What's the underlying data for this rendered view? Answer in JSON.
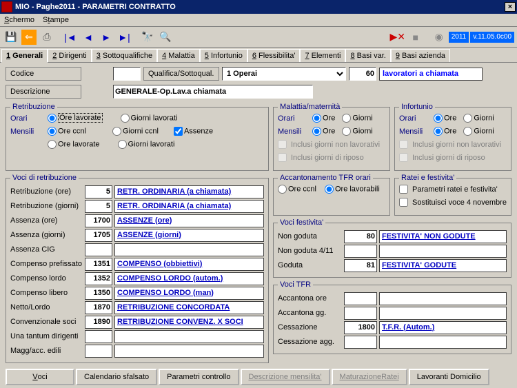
{
  "title": "MIO - Paghe2011 - PARAMETRI CONTRATTO",
  "menu": {
    "schermo": "Schermo",
    "stampe": "Stampe"
  },
  "version": {
    "year": "2011",
    "ver": "v.11.05.0c00"
  },
  "tabs": [
    {
      "n": "1",
      "label": "Generali"
    },
    {
      "n": "2",
      "label": "Dirigenti"
    },
    {
      "n": "3",
      "label": "Sottoqualifiche"
    },
    {
      "n": "4",
      "label": "Malattia"
    },
    {
      "n": "5",
      "label": "Infortunio"
    },
    {
      "n": "6",
      "label": "Flessibilita'"
    },
    {
      "n": "7",
      "label": "Elementi"
    },
    {
      "n": "8",
      "label": "Basi var."
    },
    {
      "n": "9",
      "label": "Basi azienda"
    }
  ],
  "header": {
    "codice_label": "Codice",
    "qualifica_label": "Qualifica/Sottoqual.",
    "qualifica_value": "1 Operai",
    "num_value": "60",
    "tipo_lav": "lavoratori a chiamata",
    "descrizione_label": "Descrizione",
    "descrizione_value": "GENERALE-Op.Lav.a chiamata"
  },
  "retribuzione": {
    "legend": "Retribuzione",
    "orari": "Orari",
    "mensili": "Mensili",
    "ore_lavorate": "Ore lavorate",
    "giorni_lavorati": "Giorni lavorati",
    "ore_ccnl": "Ore ccnl",
    "giorni_ccnl": "Giorni ccnl",
    "assenze": "Assenze",
    "ore_lavorate2": "Ore lavorate",
    "giorni_lavorati2": "Giorni lavorati"
  },
  "malattia": {
    "legend": "Malattia/maternità",
    "orari": "Orari",
    "mensili": "Mensili",
    "ore": "Ore",
    "giorni": "Giorni",
    "inc1": "Inclusi giorni non lavorativi",
    "inc2": "Inclusi giorni di riposo"
  },
  "infortunio": {
    "legend": "Infortunio",
    "orari": "Orari",
    "mensili": "Mensili",
    "ore": "Ore",
    "giorni": "Giorni",
    "inc1": "Inclusi giorni non lavorativi",
    "inc2": "Inclusi giorni di riposo"
  },
  "voci_legend": "Voci di retribuzione",
  "voci": [
    {
      "cap": "Retribuzione (ore)",
      "num": "5",
      "desc": "RETR. ORDINARIA (a chiamata)"
    },
    {
      "cap": "Retribuzione (giorni)",
      "num": "5",
      "desc": "RETR. ORDINARIA (a chiamata)"
    },
    {
      "cap": "Assenza (ore)",
      "num": "1700",
      "desc": "ASSENZE (ore)"
    },
    {
      "cap": "Assenza (giorni)",
      "num": "1705",
      "desc": "ASSENZE (giorni)"
    },
    {
      "cap": "Assenza CIG",
      "num": "",
      "desc": ""
    },
    {
      "cap": "Compenso prefissato",
      "num": "1351",
      "desc": "COMPENSO (obbiettivi)"
    },
    {
      "cap": "Compenso lordo",
      "num": "1352",
      "desc": "COMPENSO LORDO (autom.)"
    },
    {
      "cap": "Compenso libero",
      "num": "1350",
      "desc": "COMPENSO LORDO (man)"
    },
    {
      "cap": "Netto/Lordo",
      "num": "1870",
      "desc": "RETRIBUZIONE CONCORDATA"
    },
    {
      "cap": "Convenzionale soci",
      "num": "1890",
      "desc": "RETRIBUZIONE CONVENZ. X SOCI"
    },
    {
      "cap": "Una tantum dirigenti",
      "num": "",
      "desc": ""
    },
    {
      "cap": "Magg/acc. edili",
      "num": "",
      "desc": ""
    }
  ],
  "acc_tfr": {
    "legend": "Accantonamento TFR orari",
    "ore_ccnl": "Ore ccnl",
    "ore_lav": "Ore lavorabili"
  },
  "ratei": {
    "legend": "Ratei e festivita'",
    "c1": "Parametri ratei e festivita'",
    "c2": "Sostituisci voce 4 novembre"
  },
  "fest": {
    "legend": "Voci festivita'",
    "rows": [
      {
        "cap": "Non goduta",
        "num": "80",
        "desc": "FESTIVITA' NON GODUTE"
      },
      {
        "cap": "Non goduta 4/11",
        "num": "",
        "desc": ""
      },
      {
        "cap": "Goduta",
        "num": "81",
        "desc": "FESTIVITA' GODUTE"
      }
    ]
  },
  "tfr": {
    "legend": "Voci TFR",
    "rows": [
      {
        "cap": "Accantona ore",
        "num": "",
        "desc": ""
      },
      {
        "cap": "Accantona gg.",
        "num": "",
        "desc": ""
      },
      {
        "cap": "Cessazione",
        "num": "1800",
        "desc": "T.F.R. (Autom.)"
      },
      {
        "cap": "Cessazione agg.",
        "num": "",
        "desc": ""
      }
    ]
  },
  "buttons": {
    "voci": "Voci",
    "cal": "Calendario sfalsato",
    "param": "Parametri controllo",
    "desc": "Descrizione mensilita'",
    "mat": "MaturazioneRatei",
    "lav": "Lavoranti Domicilio"
  }
}
